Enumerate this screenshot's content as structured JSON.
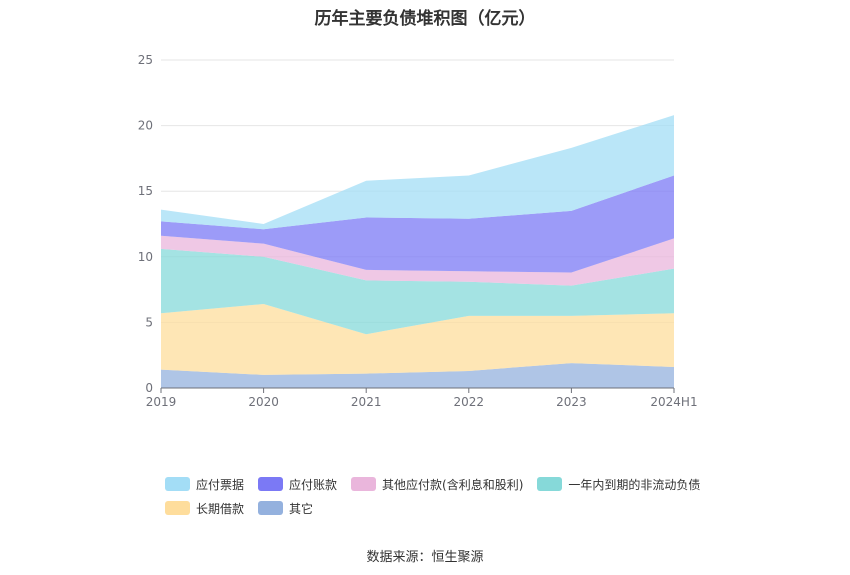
{
  "chart_data": {
    "type": "area",
    "title": "历年主要负债堆积图（亿元）",
    "stacked": true,
    "categories": [
      "2019",
      "2020",
      "2021",
      "2022",
      "2023",
      "2024H1"
    ],
    "ylim": [
      0,
      25
    ],
    "yticks": [
      0,
      5,
      10,
      15,
      20,
      25
    ],
    "grid": true,
    "legend_position": "bottom",
    "series": [
      {
        "name": "其它",
        "color": "#94b1de",
        "values": [
          1.4,
          1.0,
          1.1,
          1.3,
          1.9,
          1.6
        ]
      },
      {
        "name": "长期借款",
        "color": "#fedd9c",
        "values": [
          4.3,
          5.4,
          3.0,
          4.2,
          3.6,
          4.1
        ]
      },
      {
        "name": "一年内到期的非流动负债",
        "color": "#86d9d9",
        "values": [
          4.9,
          3.6,
          4.1,
          2.6,
          2.3,
          3.4
        ]
      },
      {
        "name": "其他应付款(含利息和股利)",
        "color": "#eab6dc",
        "values": [
          1.0,
          1.0,
          0.8,
          0.8,
          1.0,
          2.3
        ]
      },
      {
        "name": "应付账款",
        "color": "#7b79f5",
        "values": [
          1.1,
          1.1,
          4.0,
          4.0,
          4.7,
          4.8
        ]
      },
      {
        "name": "应付票据",
        "color": "#a3ddf6",
        "values": [
          0.9,
          0.4,
          2.8,
          3.3,
          4.8,
          4.6
        ]
      }
    ]
  },
  "legend": {
    "row1": [
      {
        "label": "应付票据",
        "color": "#a3ddf6"
      },
      {
        "label": "应付账款",
        "color": "#7b79f5"
      },
      {
        "label": "其他应付款(含利息和股利)",
        "color": "#eab6dc"
      },
      {
        "label": "一年内到期的非流动负债",
        "color": "#86d9d9"
      }
    ],
    "row2": [
      {
        "label": "长期借款",
        "color": "#fedd9c"
      },
      {
        "label": "其它",
        "color": "#94b1de"
      }
    ]
  },
  "source": "数据来源：恒生聚源"
}
